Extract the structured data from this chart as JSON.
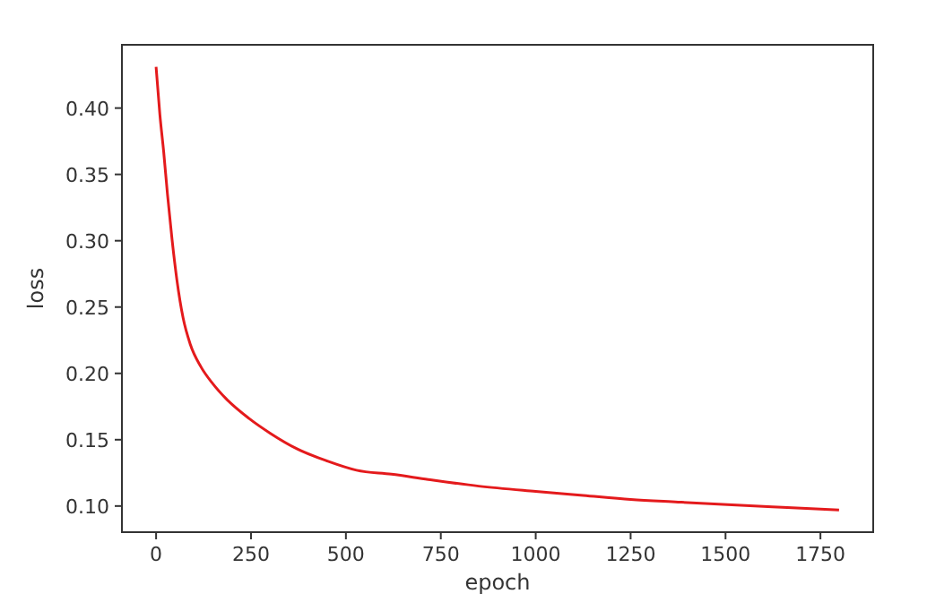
{
  "chart_data": {
    "type": "line",
    "xlabel": "epoch",
    "ylabel": "loss",
    "x": [
      0,
      10,
      20,
      30,
      42,
      55,
      71,
      90,
      118,
      150,
      184,
      245,
      300,
      372,
      450,
      528,
      620,
      717,
      850,
      1000,
      1125,
      1250,
      1375,
      1505,
      1650,
      1799
    ],
    "series": [
      {
        "color": "#e41a1c",
        "values": [
          0.431,
          0.395,
          0.367,
          0.335,
          0.301,
          0.27,
          0.242,
          0.222,
          0.205,
          0.192,
          0.181,
          0.166,
          0.155,
          0.143,
          0.134,
          0.127,
          0.124,
          0.12,
          0.115,
          0.111,
          0.108,
          0.105,
          0.103,
          0.101,
          0.099,
          0.097
        ]
      }
    ],
    "xlim": [
      -90,
      1889
    ],
    "ylim": [
      0.0803,
      0.4477
    ],
    "xticks": [
      0,
      250,
      500,
      750,
      1000,
      1250,
      1500,
      1750
    ],
    "yticks": [
      {
        "value": 0.1,
        "label": "0.10"
      },
      {
        "value": 0.15,
        "label": "0.15"
      },
      {
        "value": 0.2,
        "label": "0.20"
      },
      {
        "value": 0.25,
        "label": "0.25"
      },
      {
        "value": 0.3,
        "label": "0.30"
      },
      {
        "value": 0.35,
        "label": "0.35"
      },
      {
        "value": 0.4,
        "label": "0.40"
      }
    ],
    "grid": false,
    "marker": "none",
    "line_style": "solid"
  }
}
